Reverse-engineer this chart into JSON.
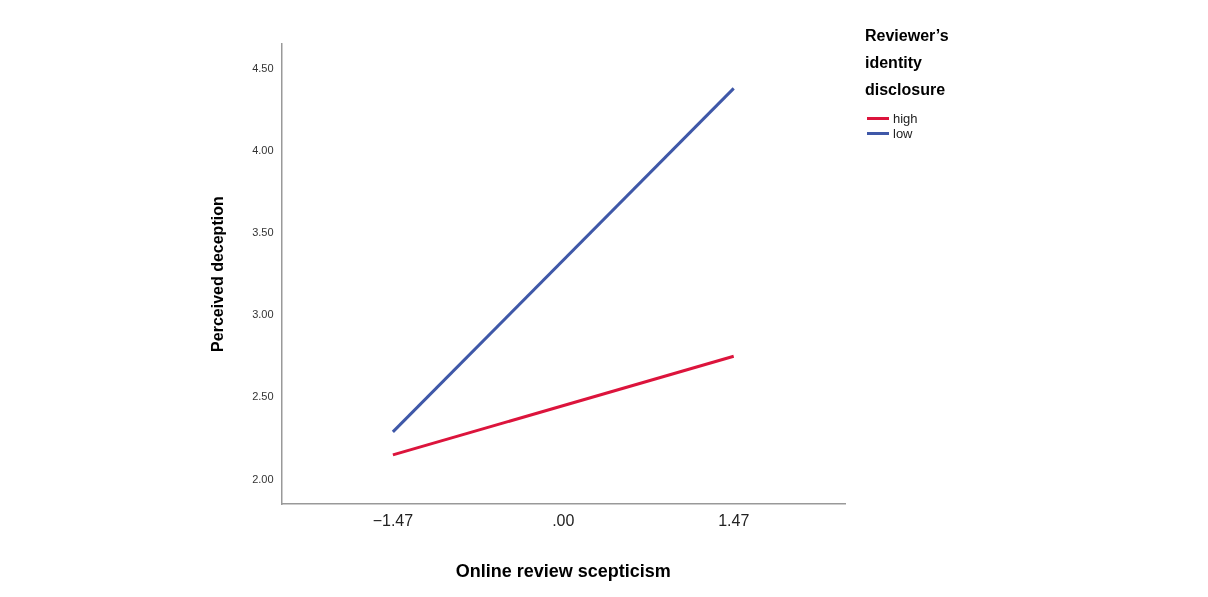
{
  "chart_data": {
    "type": "line",
    "xlabel": "Online review scepticism",
    "ylabel": "Perceived deception",
    "legend_title": "Reviewer’s identity disclosure",
    "x": [
      -1.47,
      1.47
    ],
    "series": [
      {
        "name": "high",
        "color": "#dc143c",
        "values": [
          2.15,
          2.75
        ]
      },
      {
        "name": "low",
        "color": "#3f58a8",
        "values": [
          2.29,
          4.38
        ]
      }
    ],
    "xlim": [
      -2.43,
      2.43
    ],
    "xticks": [
      {
        "value": -1.47,
        "label": "−1.47"
      },
      {
        "value": 0,
        "label": ".00"
      },
      {
        "value": 1.47,
        "label": "1.47"
      }
    ],
    "ylim": [
      1.85,
      4.65
    ],
    "yticks": [
      {
        "value": 2,
        "label": "2.00"
      },
      {
        "value": 2.5,
        "label": "2.50"
      },
      {
        "value": 3,
        "label": "3.00"
      },
      {
        "value": 3.5,
        "label": "3.50"
      },
      {
        "value": 4,
        "label": "4.00"
      },
      {
        "value": 4.5,
        "label": "4.50"
      }
    ],
    "grid": false,
    "legend": "top right",
    "marker": "none",
    "line_style": "solid"
  }
}
